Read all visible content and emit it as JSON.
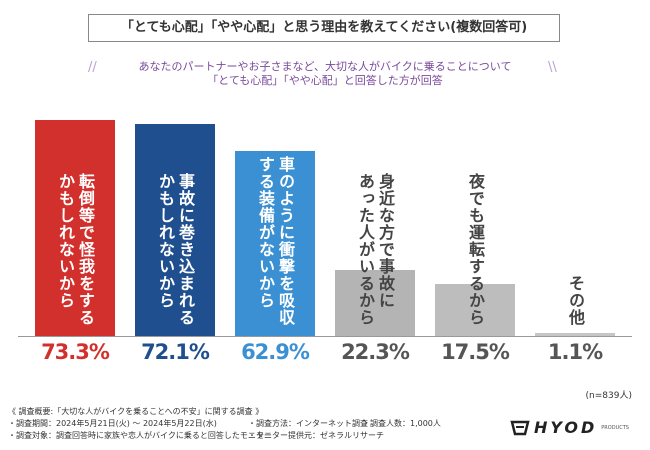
{
  "chart_data": {
    "type": "bar",
    "title": "「とても心配」「やや心配」と思う理由を教えてください(複数回答可)",
    "subtitle": [
      "あなたのパートナーやお子さまなど、大切な人がバイクに乗ることについて",
      "「とても心配」「やや心配」と回答した方が回答"
    ],
    "categories": [
      "転倒等で怪我をする\nかもしれないから",
      "事故に巻き込まれる\nかもしれないから",
      "車のように衝撃を吸収\nする装備がないから",
      "身近な方で事故に\nあった人がいるから",
      "夜でも運転するから",
      "その他"
    ],
    "values": [
      73.3,
      72.1,
      62.9,
      22.3,
      17.5,
      1.1
    ],
    "value_labels": [
      "73.3%",
      "72.1%",
      "62.9%",
      "22.3%",
      "17.5%",
      "1.1%"
    ],
    "colors": [
      "#d2302c",
      "#1f4f8e",
      "#3a90d2",
      "#b4b4b4",
      "#bdbdbd",
      "#c6c6c6"
    ],
    "note": "(n=839人)"
  },
  "footer": {
    "notes": [
      [
        "《 調査概要:「大切な人がバイクを乗ることへの不安」に関する調査 》"
      ],
      [
        "・調査期間：2024年5月21日(火) ～ 2024年5月22日(水)",
        "・調査方法：インターネット調査",
        "・調査人数：1,000人"
      ],
      [
        "・調査対象：調査回答時に家族や恋人がバイクに乗ると回答したモニター",
        "・モニター提供元：ゼネラルリサーチ"
      ]
    ],
    "logo": "HYOD",
    "logo_sub": "PRODUCTS"
  }
}
